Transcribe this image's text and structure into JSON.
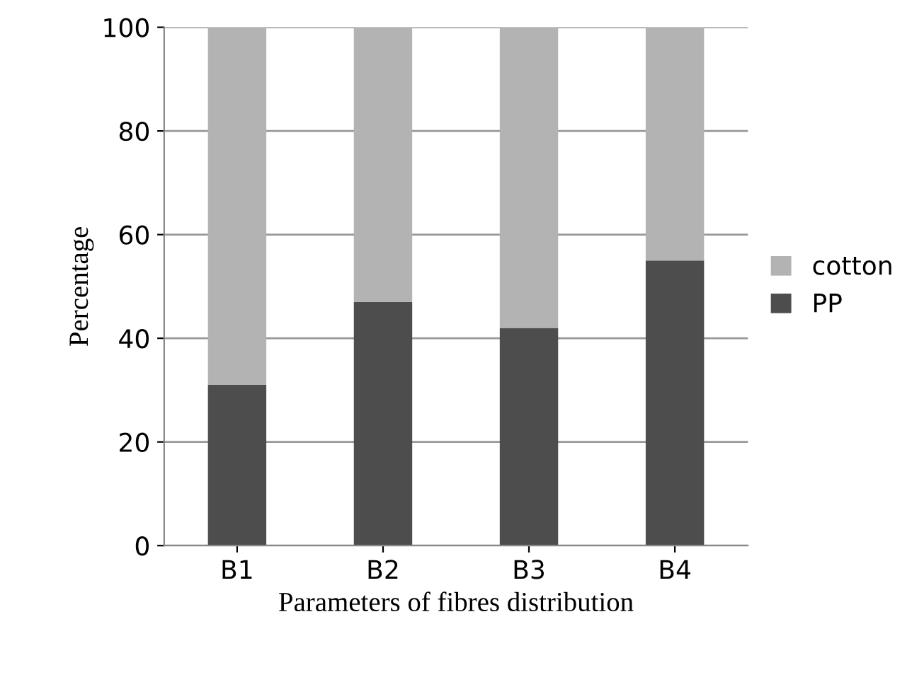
{
  "chart_data": {
    "type": "bar",
    "stacked": true,
    "xlabel": "Parameters of fibres distribution",
    "ylabel": "Percentage",
    "categories": [
      "B1",
      "B2",
      "B3",
      "B4"
    ],
    "series": [
      {
        "name": "PP",
        "color": "#4d4d4d",
        "values": [
          31,
          47,
          42,
          55
        ]
      },
      {
        "name": "cotton",
        "color": "#b3b3b3",
        "values": [
          69,
          53,
          58,
          45
        ]
      }
    ],
    "ylim": [
      0,
      100
    ],
    "yticks": [
      0,
      20,
      40,
      60,
      80,
      100
    ],
    "grid": "y",
    "legend": "right"
  }
}
